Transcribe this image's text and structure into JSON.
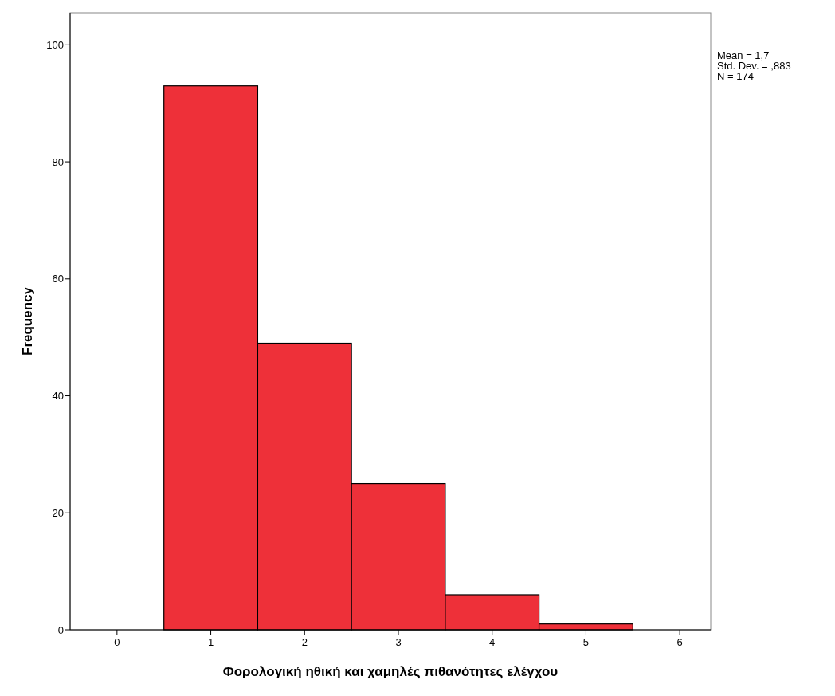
{
  "chart_data": {
    "type": "histogram",
    "xlabel": "Φορολογική ηθική και χαμηλές πιθανότητες ελέγχου",
    "ylabel": "Frequency",
    "bins": [
      0.5,
      1.5,
      2.5,
      3.5,
      4.5,
      5.5
    ],
    "values": [
      93,
      49,
      25,
      6,
      1
    ],
    "color": "#ee3039",
    "xlim": [
      -0.5,
      6.33
    ],
    "xticks": [
      0,
      1,
      2,
      3,
      4,
      5,
      6
    ],
    "ylim": [
      0,
      105.5
    ],
    "yticks": [
      0,
      20,
      40,
      60,
      80,
      100
    ],
    "annotations": [
      "Mean = 1,7",
      "Std. Dev. = ,883",
      "N = 174"
    ],
    "grid": false
  }
}
